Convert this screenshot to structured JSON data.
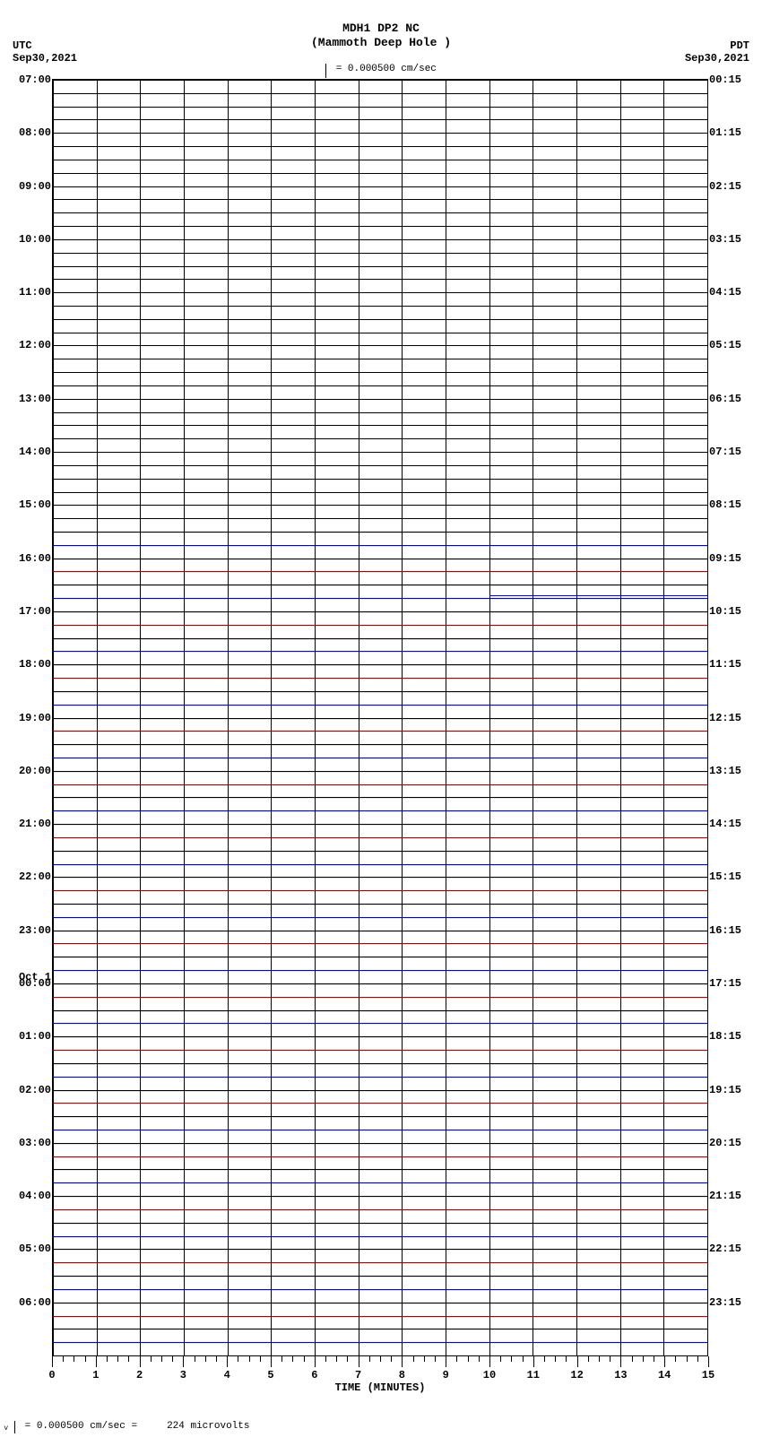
{
  "header": {
    "station_code": "MDH1 DP2 NC",
    "station_name": "(Mammoth Deep Hole )",
    "scale_text": "= 0.000500 cm/sec"
  },
  "timezones": {
    "left_tz": "UTC",
    "left_date": "Sep30,2021",
    "right_tz": "PDT",
    "right_date": "Sep30,2021"
  },
  "plot": {
    "type": "helicorder",
    "total_traces": 96,
    "trace_interval_minutes": 15,
    "left_hour_labels": [
      {
        "trace": 0,
        "text": "07:00"
      },
      {
        "trace": 4,
        "text": "08:00"
      },
      {
        "trace": 8,
        "text": "09:00"
      },
      {
        "trace": 12,
        "text": "10:00"
      },
      {
        "trace": 16,
        "text": "11:00"
      },
      {
        "trace": 20,
        "text": "12:00"
      },
      {
        "trace": 24,
        "text": "13:00"
      },
      {
        "trace": 28,
        "text": "14:00"
      },
      {
        "trace": 32,
        "text": "15:00"
      },
      {
        "trace": 36,
        "text": "16:00"
      },
      {
        "trace": 40,
        "text": "17:00"
      },
      {
        "trace": 44,
        "text": "18:00"
      },
      {
        "trace": 48,
        "text": "19:00"
      },
      {
        "trace": 52,
        "text": "20:00"
      },
      {
        "trace": 56,
        "text": "21:00"
      },
      {
        "trace": 60,
        "text": "22:00"
      },
      {
        "trace": 64,
        "text": "23:00"
      },
      {
        "trace": 68,
        "text": "00:00"
      },
      {
        "trace": 72,
        "text": "01:00"
      },
      {
        "trace": 76,
        "text": "02:00"
      },
      {
        "trace": 80,
        "text": "03:00"
      },
      {
        "trace": 84,
        "text": "04:00"
      },
      {
        "trace": 88,
        "text": "05:00"
      },
      {
        "trace": 92,
        "text": "06:00"
      }
    ],
    "right_hour_labels": [
      {
        "trace": 0,
        "text": "00:15"
      },
      {
        "trace": 4,
        "text": "01:15"
      },
      {
        "trace": 8,
        "text": "02:15"
      },
      {
        "trace": 12,
        "text": "03:15"
      },
      {
        "trace": 16,
        "text": "04:15"
      },
      {
        "trace": 20,
        "text": "05:15"
      },
      {
        "trace": 24,
        "text": "06:15"
      },
      {
        "trace": 28,
        "text": "07:15"
      },
      {
        "trace": 32,
        "text": "08:15"
      },
      {
        "trace": 36,
        "text": "09:15"
      },
      {
        "trace": 40,
        "text": "10:15"
      },
      {
        "trace": 44,
        "text": "11:15"
      },
      {
        "trace": 48,
        "text": "12:15"
      },
      {
        "trace": 52,
        "text": "13:15"
      },
      {
        "trace": 56,
        "text": "14:15"
      },
      {
        "trace": 60,
        "text": "15:15"
      },
      {
        "trace": 64,
        "text": "16:15"
      },
      {
        "trace": 68,
        "text": "17:15"
      },
      {
        "trace": 72,
        "text": "18:15"
      },
      {
        "trace": 76,
        "text": "19:15"
      },
      {
        "trace": 80,
        "text": "20:15"
      },
      {
        "trace": 84,
        "text": "21:15"
      },
      {
        "trace": 88,
        "text": "22:15"
      },
      {
        "trace": 92,
        "text": "23:15"
      }
    ],
    "midnight_label": {
      "trace": 68,
      "text": "Oct 1"
    },
    "anomaly": {
      "trace": 39,
      "start_min": 10,
      "end_min": 15,
      "color": "#0000ff"
    },
    "trace_colors": [
      "#000000",
      "#aa0000",
      "#000000",
      "#0000cc"
    ],
    "background_color": "#ffffff",
    "grid_color": "#000000",
    "noisy_start_trace": 34
  },
  "xaxis": {
    "xmin": 0,
    "xmax": 15,
    "major_step": 1,
    "minor_per_major": 4,
    "label": "TIME (MINUTES)",
    "tick_labels": [
      "0",
      "1",
      "2",
      "3",
      "4",
      "5",
      "6",
      "7",
      "8",
      "9",
      "10",
      "11",
      "12",
      "13",
      "14",
      "15"
    ]
  },
  "footer": {
    "text_prefix": "= 0.000500 cm/sec =",
    "microvolts": "224 microvolts"
  }
}
